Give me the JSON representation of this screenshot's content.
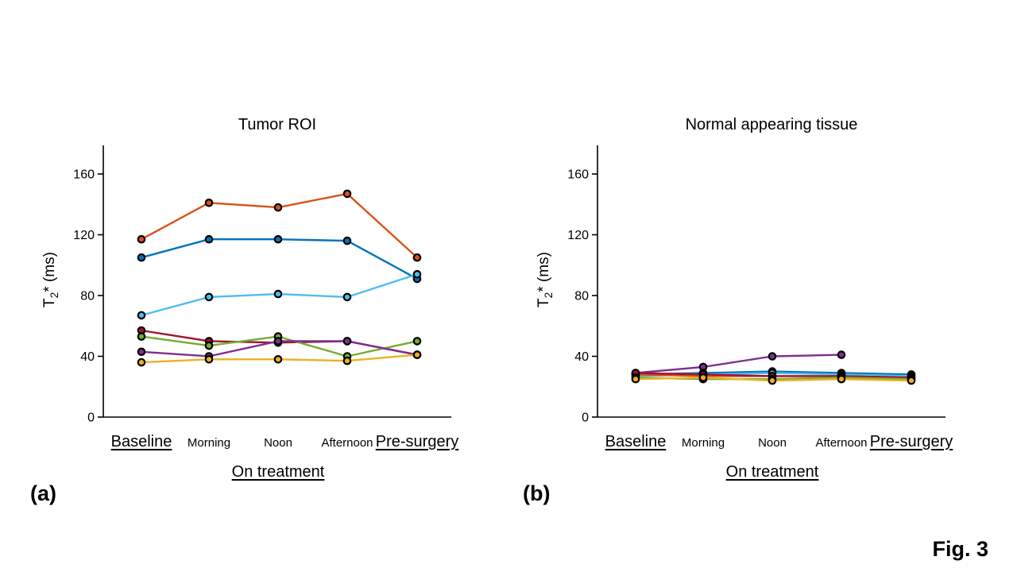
{
  "figure": {
    "label_a": "(a)",
    "label_b": "(b)",
    "fig_label": "Fig. 3"
  },
  "axis": {
    "ylabel_pre": "T",
    "ylabel_sub": "2",
    "ylabel_post": "* (ms)",
    "x_major_left": "Baseline",
    "x_minor": [
      "Morning",
      "Noon",
      "Afternoon"
    ],
    "x_major_right": "Pre-surgery",
    "x_group_label": "On treatment"
  },
  "chart_data": [
    {
      "type": "line",
      "title": "Tumor ROI",
      "categories": [
        "Baseline",
        "Morning",
        "Noon",
        "Afternoon",
        "Pre-surgery"
      ],
      "xlabel": "On treatment",
      "ylabel": "T2* (ms)",
      "ylim": [
        0,
        180
      ],
      "yticks": [
        0,
        40,
        80,
        120,
        160
      ],
      "grid": false,
      "legend": "none",
      "marker": "circle-black-edge",
      "series": [
        {
          "name": "subject-orange",
          "color": "#D95319",
          "values": [
            117,
            141,
            138,
            147,
            105
          ]
        },
        {
          "name": "subject-blue",
          "color": "#0072BD",
          "values": [
            105,
            117,
            117,
            116,
            91
          ]
        },
        {
          "name": "subject-lightblue",
          "color": "#4DBEEE",
          "values": [
            67,
            79,
            81,
            79,
            94
          ]
        },
        {
          "name": "subject-crimson",
          "color": "#A2142F",
          "values": [
            57,
            50,
            49,
            50,
            41
          ]
        },
        {
          "name": "subject-green",
          "color": "#77AC30",
          "values": [
            53,
            47,
            53,
            40,
            50
          ]
        },
        {
          "name": "subject-purple",
          "color": "#7E2F8E",
          "values": [
            43,
            40,
            50,
            50,
            41
          ]
        },
        {
          "name": "subject-yellow",
          "color": "#EDB120",
          "values": [
            36,
            38,
            38,
            37,
            41
          ]
        }
      ]
    },
    {
      "type": "line",
      "title": "Normal appearing tissue",
      "categories": [
        "Baseline",
        "Morning",
        "Noon",
        "Afternoon",
        "Pre-surgery"
      ],
      "xlabel": "On treatment",
      "ylabel": "T2* (ms)",
      "ylim": [
        0,
        180
      ],
      "yticks": [
        0,
        40,
        80,
        120,
        160
      ],
      "grid": false,
      "legend": "none",
      "marker": "circle-black-edge",
      "series": [
        {
          "name": "subject-purple",
          "color": "#7E2F8E",
          "values": [
            29,
            33,
            40,
            41,
            null
          ]
        },
        {
          "name": "subject-blue",
          "color": "#0072BD",
          "values": [
            28,
            29,
            30,
            29,
            28
          ]
        },
        {
          "name": "subject-lightblue",
          "color": "#4DBEEE",
          "values": [
            27,
            28,
            29,
            28,
            27
          ]
        },
        {
          "name": "subject-orange",
          "color": "#D95319",
          "values": [
            28,
            27,
            27,
            27,
            26
          ]
        },
        {
          "name": "subject-crimson",
          "color": "#A2142F",
          "values": [
            29,
            28,
            27,
            27,
            26
          ]
        },
        {
          "name": "subject-green",
          "color": "#77AC30",
          "values": [
            26,
            25,
            25,
            26,
            25
          ]
        },
        {
          "name": "subject-yellow",
          "color": "#EDB120",
          "values": [
            25,
            26,
            24,
            25,
            24
          ]
        }
      ]
    }
  ]
}
